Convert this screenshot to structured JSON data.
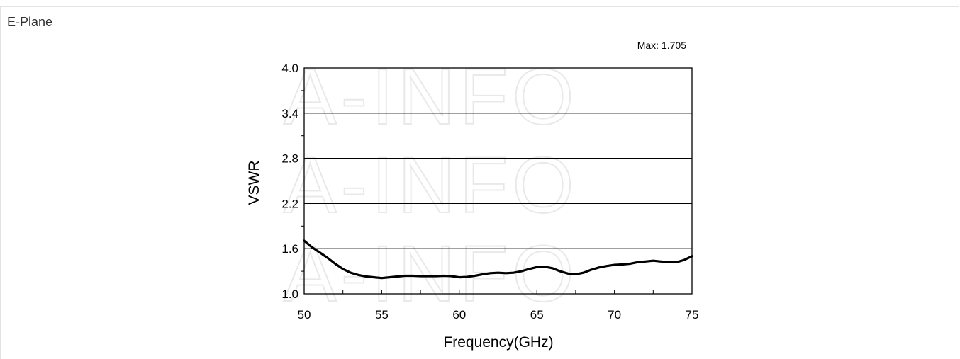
{
  "panel": {
    "title": "E-Plane"
  },
  "watermark": {
    "text": "A-INFO"
  },
  "chart_data": {
    "type": "line",
    "title": "",
    "annotation": "Max: 1.705",
    "xlabel": "Frequency(GHz)",
    "ylabel": "VSWR",
    "xlim": [
      50,
      75
    ],
    "ylim": [
      1.0,
      4.0
    ],
    "xticks": [
      "50",
      "55",
      "60",
      "65",
      "70",
      "75"
    ],
    "yticks": [
      "1.0",
      "1.6",
      "2.2",
      "2.8",
      "3.4",
      "4.0"
    ],
    "grid": "horizontal",
    "legend": "none",
    "line_color": "#000000",
    "series": [
      {
        "x": [
          50,
          50.5,
          51,
          51.5,
          52,
          52.5,
          53,
          53.5,
          54,
          54.5,
          55,
          55.5,
          56,
          56.5,
          57,
          57.5,
          58,
          58.5,
          59,
          59.5,
          60,
          60.5,
          61,
          61.5,
          62,
          62.5,
          63,
          63.5,
          64,
          64.5,
          65,
          65.5,
          66,
          66.5,
          67,
          67.5,
          68,
          68.5,
          69,
          69.5,
          70,
          70.5,
          71,
          71.5,
          72,
          72.5,
          73,
          73.5,
          74,
          74.5,
          75
        ],
        "y": [
          1.705,
          1.62,
          1.55,
          1.48,
          1.4,
          1.33,
          1.28,
          1.25,
          1.23,
          1.22,
          1.21,
          1.22,
          1.23,
          1.24,
          1.24,
          1.235,
          1.235,
          1.235,
          1.24,
          1.235,
          1.22,
          1.225,
          1.24,
          1.26,
          1.275,
          1.28,
          1.275,
          1.28,
          1.3,
          1.33,
          1.355,
          1.36,
          1.34,
          1.3,
          1.27,
          1.26,
          1.28,
          1.32,
          1.35,
          1.37,
          1.385,
          1.39,
          1.4,
          1.42,
          1.43,
          1.44,
          1.43,
          1.42,
          1.42,
          1.45,
          1.5
        ]
      }
    ]
  }
}
